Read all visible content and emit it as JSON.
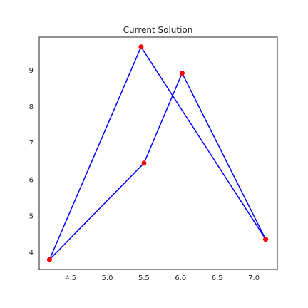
{
  "chart_data": {
    "type": "line",
    "title": "Current Solution",
    "xlabel": "",
    "ylabel": "",
    "xlim": [
      4.07,
      7.32
    ],
    "ylim": [
      3.53,
      9.91
    ],
    "xticks": [
      4.5,
      5.0,
      5.5,
      6.0,
      6.5,
      7.0
    ],
    "xtick_labels": [
      "4.5",
      "5.0",
      "5.5",
      "6.0",
      "6.5",
      "7.0"
    ],
    "yticks": [
      4,
      5,
      6,
      7,
      8,
      9
    ],
    "ytick_labels": [
      "4",
      "5",
      "6",
      "7",
      "8",
      "9"
    ],
    "grid": false,
    "series": [
      {
        "color": "#0000ff",
        "x": [
          4.21,
          5.46,
          7.16,
          6.02,
          5.5,
          4.21
        ],
        "y": [
          3.8,
          9.64,
          4.36,
          8.92,
          6.45,
          3.8
        ]
      }
    ],
    "points": {
      "color": "#ff0000",
      "x": [
        4.21,
        5.46,
        7.16,
        6.02,
        5.5
      ],
      "y": [
        3.8,
        9.64,
        4.36,
        8.92,
        6.45
      ]
    }
  }
}
